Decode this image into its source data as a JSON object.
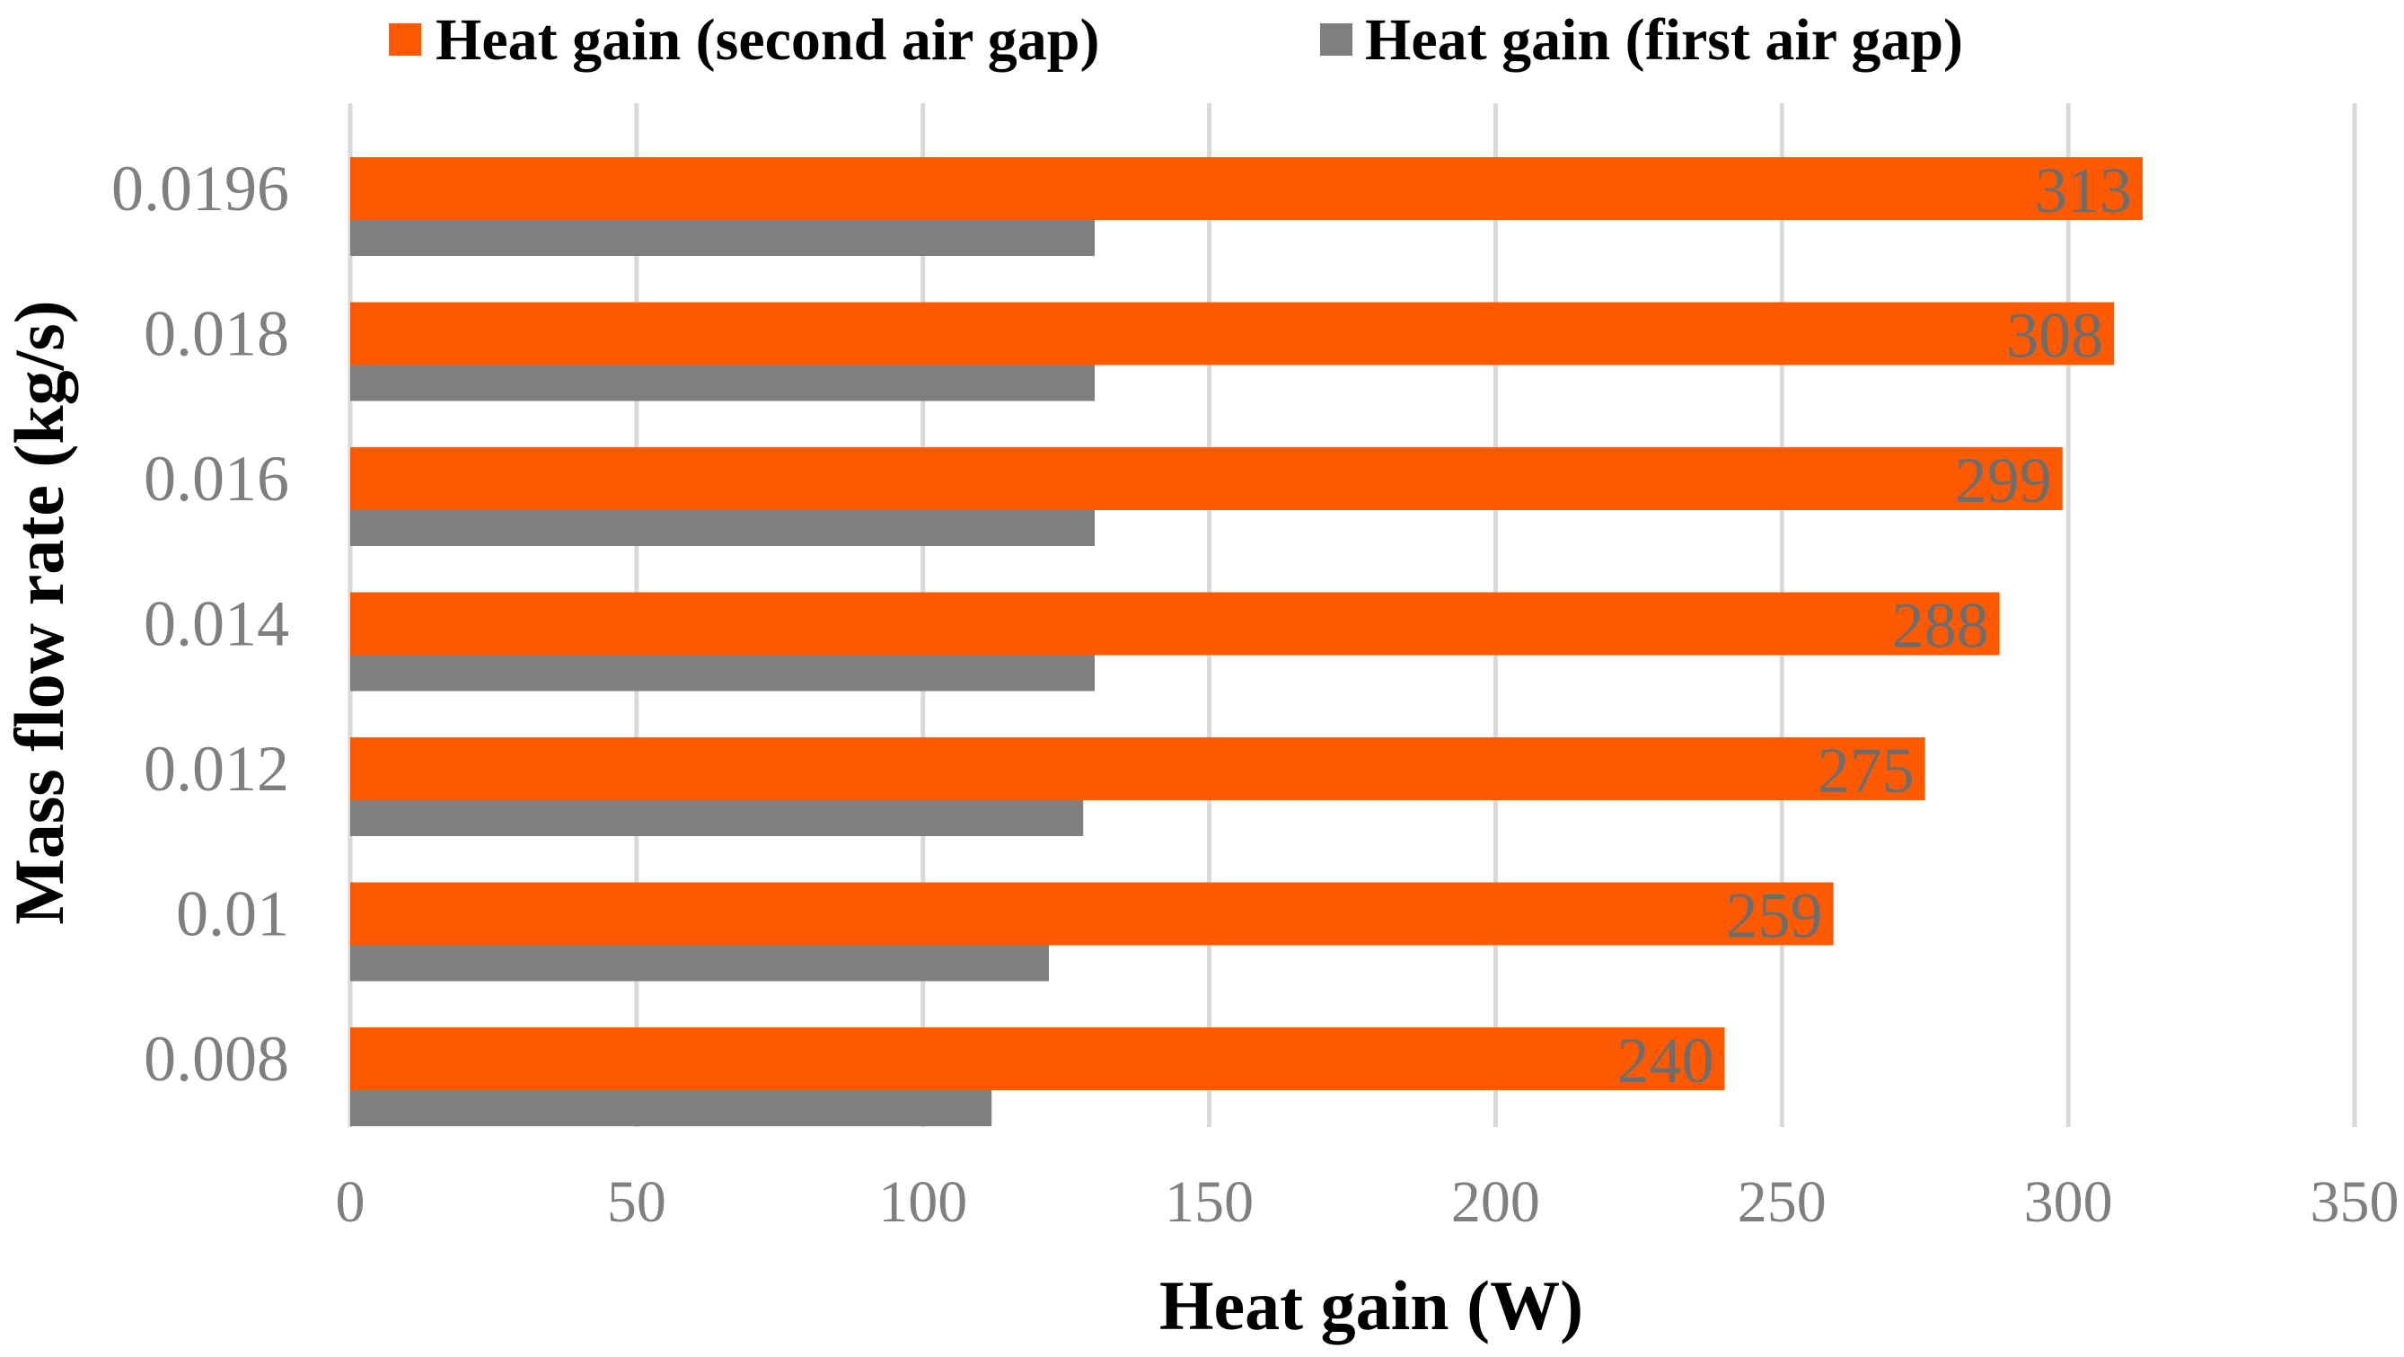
{
  "chart_data": {
    "type": "bar",
    "orientation": "horizontal",
    "title": "",
    "xlabel": "Heat gain (W)",
    "ylabel": "Mass flow rate (kg/s)",
    "xlim": [
      0,
      350
    ],
    "x_ticks": [
      0,
      50,
      100,
      150,
      200,
      250,
      300,
      350
    ],
    "x_tick_labels": [
      "0",
      "50",
      "100",
      "150",
      "200",
      "250",
      "300",
      "350"
    ],
    "grid": "vertical",
    "legend_position": "top",
    "categories": [
      "0.008",
      "0.01",
      "0.012",
      "0.014",
      "0.016",
      "0.018",
      "0.0196"
    ],
    "series": [
      {
        "name": "Heat gain (second air gap)",
        "color": "#ff5a00",
        "values": [
          240,
          259,
          275,
          288,
          299,
          308,
          313
        ],
        "data_labels": [
          "240",
          "259",
          "275",
          "288",
          "299",
          "308",
          "313"
        ]
      },
      {
        "name": "Heat gain (first air gap)",
        "color": "#7f7f7f",
        "values": [
          112,
          122,
          128,
          130,
          130,
          130,
          130
        ]
      }
    ],
    "grid_color": "#d9d9d9"
  }
}
